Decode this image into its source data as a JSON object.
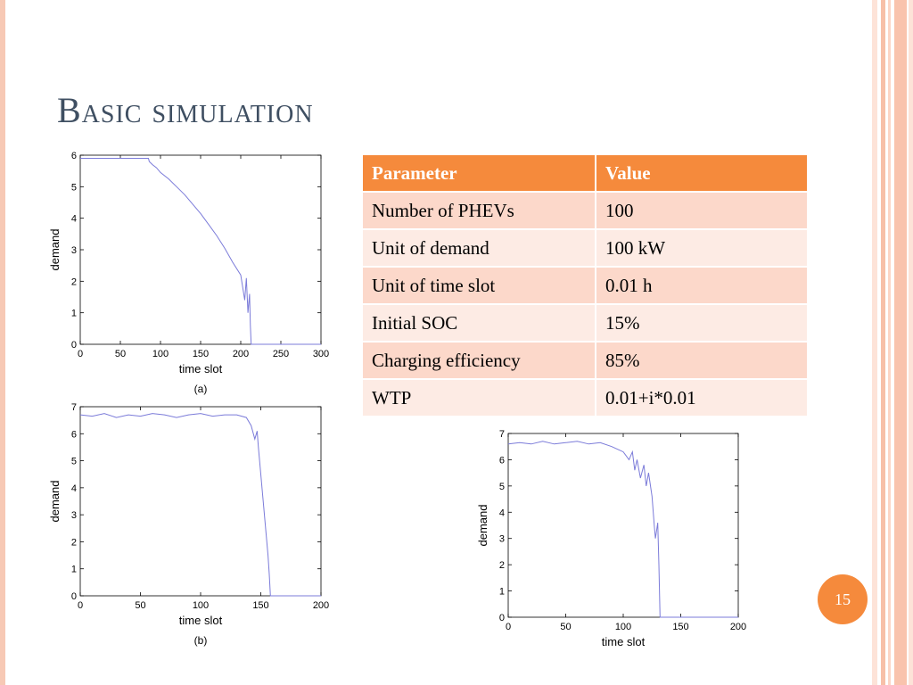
{
  "slide": {
    "title": "Basic simulation",
    "page_number": "15"
  },
  "table": {
    "headers": [
      "Parameter",
      "Value"
    ],
    "rows": [
      [
        "Number of PHEVs",
        "100"
      ],
      [
        "Unit of demand",
        "100 kW"
      ],
      [
        "Unit of time slot",
        "0.01 h"
      ],
      [
        "Initial SOC",
        "15%"
      ],
      [
        "Charging efficiency",
        "85%"
      ],
      [
        "WTP",
        "0.01+i*0.01"
      ]
    ]
  },
  "colors": {
    "accent": "#f58a3c",
    "title": "#3f4f62",
    "line": "#7b7bd9",
    "row_odd": "#fcd8ca",
    "row_even": "#fdebe4"
  },
  "chart_data": [
    {
      "type": "line",
      "caption": "(a)",
      "xlabel": "time slot",
      "ylabel": "demand",
      "xlim": [
        0,
        300
      ],
      "ylim": [
        0,
        6
      ],
      "xticks": [
        0,
        50,
        100,
        150,
        200,
        250,
        300
      ],
      "yticks": [
        0,
        1,
        2,
        3,
        4,
        5,
        6
      ],
      "x": [
        0,
        85,
        86,
        90,
        95,
        100,
        110,
        120,
        130,
        140,
        150,
        160,
        170,
        180,
        190,
        200,
        205,
        207,
        209,
        211,
        212,
        213,
        214,
        300
      ],
      "y": [
        5.9,
        5.9,
        5.8,
        5.7,
        5.6,
        5.45,
        5.25,
        5.0,
        4.75,
        4.45,
        4.15,
        3.8,
        3.45,
        3.05,
        2.6,
        2.2,
        1.4,
        2.1,
        1.0,
        1.6,
        0.6,
        0.0,
        0.0,
        0.0
      ]
    },
    {
      "type": "line",
      "caption": "(b)",
      "xlabel": "time slot",
      "ylabel": "demand",
      "xlim": [
        0,
        200
      ],
      "ylim": [
        0,
        7
      ],
      "xticks": [
        0,
        50,
        100,
        150,
        200
      ],
      "yticks": [
        0,
        1,
        2,
        3,
        4,
        5,
        6,
        7
      ],
      "x": [
        0,
        10,
        20,
        30,
        40,
        50,
        60,
        70,
        80,
        90,
        100,
        110,
        120,
        130,
        138,
        142,
        145,
        147,
        148,
        150,
        152,
        154,
        156,
        157,
        158,
        160,
        200
      ],
      "y": [
        6.7,
        6.65,
        6.75,
        6.6,
        6.7,
        6.65,
        6.75,
        6.7,
        6.6,
        6.7,
        6.75,
        6.65,
        6.7,
        6.7,
        6.6,
        6.3,
        5.8,
        6.1,
        5.5,
        4.5,
        3.5,
        2.5,
        1.5,
        0.8,
        0.0,
        0.0,
        0.0
      ]
    },
    {
      "type": "line",
      "xlabel": "time slot",
      "ylabel": "demand",
      "xlim": [
        0,
        200
      ],
      "ylim": [
        0,
        7
      ],
      "xticks": [
        0,
        50,
        100,
        150,
        200
      ],
      "yticks": [
        0,
        1,
        2,
        3,
        4,
        5,
        6,
        7
      ],
      "x": [
        0,
        10,
        20,
        30,
        40,
        50,
        60,
        70,
        80,
        90,
        95,
        100,
        105,
        108,
        110,
        112,
        115,
        118,
        120,
        122,
        125,
        127,
        128,
        130,
        131,
        132,
        200
      ],
      "y": [
        6.6,
        6.65,
        6.6,
        6.7,
        6.6,
        6.65,
        6.7,
        6.6,
        6.65,
        6.5,
        6.4,
        6.3,
        6.0,
        6.3,
        5.6,
        6.0,
        5.3,
        5.8,
        5.0,
        5.5,
        4.6,
        3.5,
        3.0,
        3.6,
        2.0,
        0.0,
        0.0
      ]
    }
  ]
}
